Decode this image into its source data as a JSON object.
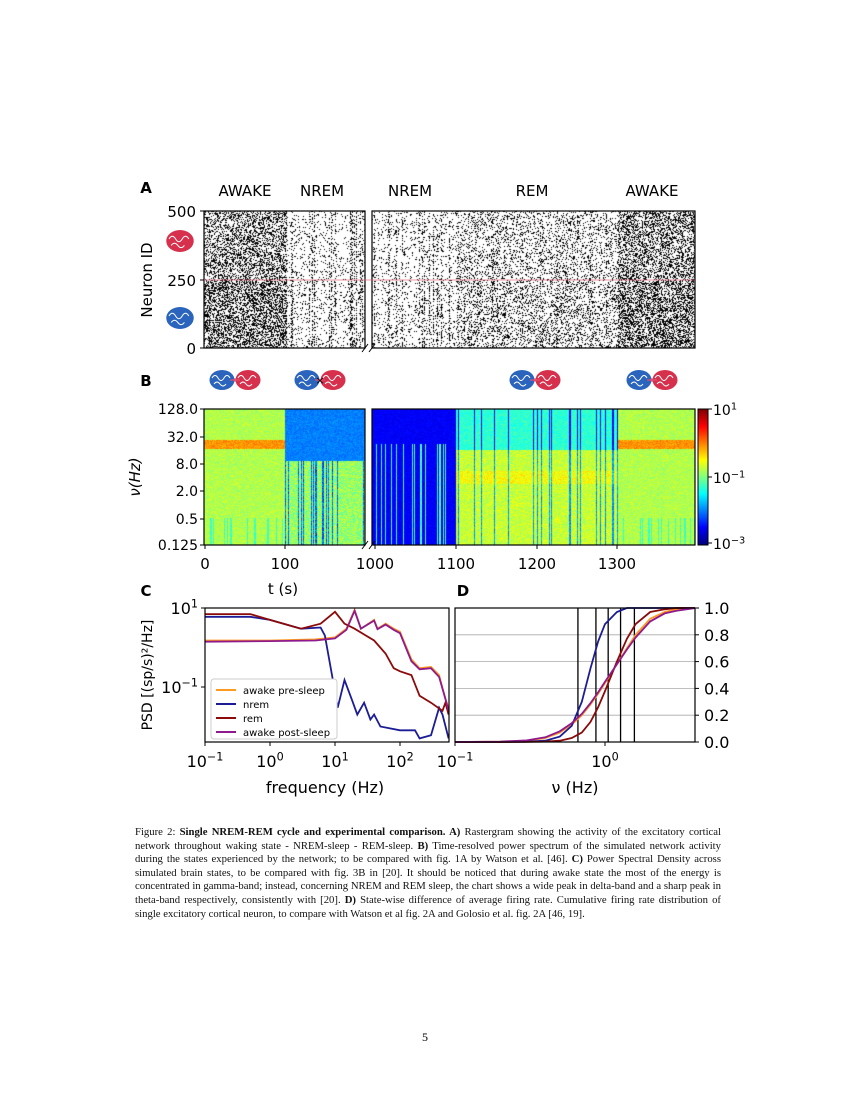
{
  "figure": {
    "panel_labels": {
      "a": "A",
      "b": "B",
      "c": "C",
      "d": "D"
    },
    "panel_a": {
      "state_titles": [
        "AWAKE",
        "NREM",
        "NREM",
        "REM",
        "AWAKE"
      ],
      "ylabel": "Neuron ID",
      "yticks": [
        "500",
        "250",
        "0"
      ],
      "separator_color": "#e0506a",
      "brain_icons": [
        "excitatory-red-brain",
        "inhibitory-blue-brain"
      ]
    },
    "panel_b": {
      "connectivity_icons": [
        "connected",
        "disconnected",
        "connected",
        "connected"
      ],
      "ylabel": "ν(Hz)",
      "yticks": [
        "128.0",
        "32.0",
        "8.0",
        "2.0",
        "0.5",
        "0.125"
      ],
      "xticks": [
        "0",
        "100",
        "1000",
        "1100",
        "1200",
        "1300"
      ],
      "xlabel": "t (s)",
      "colorbar": {
        "colormap": "jet",
        "ticks": [
          {
            "base": "10",
            "exp": "1"
          },
          {
            "base": "10",
            "exp": "−1"
          },
          {
            "base": "10",
            "exp": "−3"
          }
        ]
      }
    }
  },
  "chart_data": [
    {
      "panel": "C",
      "type": "line",
      "xlabel": "frequency (Hz)",
      "ylabel": "PSD [(sp/s)²/Hz]",
      "xscale": "log",
      "yscale": "log",
      "xlim": [
        0.1,
        560
      ],
      "ylim": [
        0.004,
        10
      ],
      "xticks": [
        {
          "base": "10",
          "exp": "−1"
        },
        {
          "base": "10",
          "exp": "0"
        },
        {
          "base": "10",
          "exp": "1"
        },
        {
          "base": "10",
          "exp": "2"
        }
      ],
      "yticks": [
        {
          "base": "10",
          "exp": "1"
        },
        {
          "base": "10",
          "exp": "−1"
        }
      ],
      "legend_position": "lower-left",
      "series": [
        {
          "name": "awake pre-sleep",
          "color": "#ff9a1f",
          "points": [
            [
              0.1,
              1.5
            ],
            [
              1,
              1.5
            ],
            [
              5,
              1.6
            ],
            [
              10,
              1.8
            ],
            [
              15,
              3
            ],
            [
              20,
              9
            ],
            [
              25,
              3
            ],
            [
              40,
              5
            ],
            [
              45,
              3
            ],
            [
              60,
              4
            ],
            [
              80,
              3
            ],
            [
              100,
              2.5
            ],
            [
              150,
              0.5
            ],
            [
              200,
              0.3
            ],
            [
              300,
              0.32
            ],
            [
              400,
              0.2
            ],
            [
              500,
              0.05
            ],
            [
              560,
              0.03
            ]
          ]
        },
        {
          "name": "nrem",
          "color": "#1c1c96",
          "points": [
            [
              0.1,
              6
            ],
            [
              0.5,
              6
            ],
            [
              1,
              5
            ],
            [
              3,
              3
            ],
            [
              6,
              3.2
            ],
            [
              7,
              2
            ],
            [
              9,
              0.2
            ],
            [
              11,
              0.03
            ],
            [
              14,
              0.15
            ],
            [
              18,
              0.05
            ],
            [
              22,
              0.02
            ],
            [
              28,
              0.04
            ],
            [
              35,
              0.015
            ],
            [
              40,
              0.02
            ],
            [
              50,
              0.01
            ],
            [
              100,
              0.008
            ],
            [
              170,
              0.008
            ],
            [
              200,
              0.005
            ],
            [
              300,
              0.006
            ],
            [
              400,
              0.03
            ],
            [
              450,
              0.02
            ],
            [
              560,
              0.005
            ]
          ]
        },
        {
          "name": "rem",
          "color": "#8b0a0a",
          "points": [
            [
              0.1,
              7
            ],
            [
              0.5,
              7
            ],
            [
              1,
              5
            ],
            [
              3,
              3
            ],
            [
              6,
              4
            ],
            [
              10,
              8
            ],
            [
              14,
              4
            ],
            [
              20,
              3
            ],
            [
              30,
              2
            ],
            [
              40,
              1.5
            ],
            [
              60,
              0.7
            ],
            [
              80,
              0.3
            ],
            [
              100,
              0.25
            ],
            [
              150,
              0.2
            ],
            [
              200,
              0.06
            ],
            [
              300,
              0.04
            ],
            [
              450,
              0.025
            ],
            [
              500,
              0.04
            ],
            [
              560,
              0.02
            ]
          ]
        },
        {
          "name": "awake post-sleep",
          "color": "#8e1a8e",
          "points": [
            [
              0.1,
              1.4
            ],
            [
              1,
              1.45
            ],
            [
              5,
              1.5
            ],
            [
              10,
              1.7
            ],
            [
              15,
              2.8
            ],
            [
              20,
              8.5
            ],
            [
              25,
              3
            ],
            [
              40,
              4.8
            ],
            [
              45,
              2.9
            ],
            [
              60,
              3.8
            ],
            [
              80,
              2.8
            ],
            [
              100,
              2.3
            ],
            [
              150,
              0.45
            ],
            [
              200,
              0.28
            ],
            [
              300,
              0.3
            ],
            [
              400,
              0.18
            ],
            [
              500,
              0.05
            ],
            [
              560,
              0.025
            ]
          ]
        }
      ]
    },
    {
      "panel": "D",
      "type": "line",
      "xlabel": "ν (Hz)",
      "xscale": "log",
      "xlim": [
        0.1,
        4
      ],
      "ylim": [
        0,
        1
      ],
      "xticks": [
        {
          "base": "10",
          "exp": "−1"
        },
        {
          "base": "10",
          "exp": "0"
        }
      ],
      "yticks": [
        "1.0",
        "0.8",
        "0.6",
        "0.4",
        "0.2",
        "0.0"
      ],
      "grid": "horizontal",
      "vertical_lines": [
        0.66,
        0.87,
        1.05,
        1.27,
        1.57
      ],
      "series": [
        {
          "color": "#ff9a1f",
          "points": [
            [
              0.1,
              0
            ],
            [
              0.2,
              0.002
            ],
            [
              0.3,
              0.01
            ],
            [
              0.4,
              0.03
            ],
            [
              0.5,
              0.07
            ],
            [
              0.6,
              0.13
            ],
            [
              0.7,
              0.2
            ],
            [
              0.8,
              0.28
            ],
            [
              0.9,
              0.36
            ],
            [
              1.0,
              0.44
            ],
            [
              1.2,
              0.58
            ],
            [
              1.4,
              0.7
            ],
            [
              1.6,
              0.8
            ],
            [
              2,
              0.92
            ],
            [
              2.5,
              0.97
            ],
            [
              3,
              0.99
            ],
            [
              4,
              1
            ]
          ]
        },
        {
          "color": "#1c1c96",
          "points": [
            [
              0.1,
              0
            ],
            [
              0.2,
              0
            ],
            [
              0.3,
              0.002
            ],
            [
              0.4,
              0.01
            ],
            [
              0.5,
              0.04
            ],
            [
              0.6,
              0.12
            ],
            [
              0.7,
              0.3
            ],
            [
              0.8,
              0.55
            ],
            [
              0.9,
              0.75
            ],
            [
              1.0,
              0.88
            ],
            [
              1.2,
              0.97
            ],
            [
              1.4,
              1
            ],
            [
              4,
              1
            ]
          ]
        },
        {
          "color": "#8b0a0a",
          "points": [
            [
              0.1,
              0
            ],
            [
              0.2,
              0
            ],
            [
              0.3,
              0.001
            ],
            [
              0.4,
              0.003
            ],
            [
              0.5,
              0.01
            ],
            [
              0.6,
              0.03
            ],
            [
              0.7,
              0.07
            ],
            [
              0.8,
              0.15
            ],
            [
              0.9,
              0.26
            ],
            [
              1.0,
              0.38
            ],
            [
              1.2,
              0.6
            ],
            [
              1.4,
              0.77
            ],
            [
              1.6,
              0.88
            ],
            [
              2,
              0.97
            ],
            [
              2.5,
              0.99
            ],
            [
              3,
              1
            ],
            [
              4,
              1
            ]
          ]
        },
        {
          "color": "#8e1a8e",
          "points": [
            [
              0.1,
              0
            ],
            [
              0.2,
              0.003
            ],
            [
              0.3,
              0.012
            ],
            [
              0.4,
              0.035
            ],
            [
              0.5,
              0.08
            ],
            [
              0.6,
              0.14
            ],
            [
              0.7,
              0.21
            ],
            [
              0.8,
              0.29
            ],
            [
              0.9,
              0.37
            ],
            [
              1.0,
              0.45
            ],
            [
              1.2,
              0.58
            ],
            [
              1.4,
              0.69
            ],
            [
              1.6,
              0.78
            ],
            [
              2,
              0.9
            ],
            [
              2.5,
              0.96
            ],
            [
              3,
              0.98
            ],
            [
              4,
              1
            ]
          ]
        }
      ]
    }
  ],
  "caption": {
    "label": "Figure 2: ",
    "title": "Single NREM-REM cycle and experimental comparison.",
    "a_key": " A)",
    "a_text": " Rastergram showing the activity of the excitatory cortical network throughout waking state - NREM-sleep - REM-sleep. ",
    "b_key": "B)",
    "b_text": " Time-resolved power spectrum of the simulated network activity during the states experienced by the network; to be compared with fig. 1A by Watson et al. [46]. ",
    "c_key": "C)",
    "c_text": " Power Spectral Density across simulated brain states, to be compared with fig. 3B in [20]. It should be noticed that during awake state the most of the energy is concentrated in gamma-band; instead, concerning NREM and REM sleep, the chart shows a wide peak in delta-band and a sharp peak in theta-band respectively, consistently with [20]. ",
    "d_key": "D)",
    "d_text": " State-wise difference of average firing rate. Cumulative firing rate distribution of single excitatory cortical neuron, to compare with Watson et al fig. 2A and Golosio et al. fig. 2A [46, 19]."
  },
  "page_number": "5"
}
